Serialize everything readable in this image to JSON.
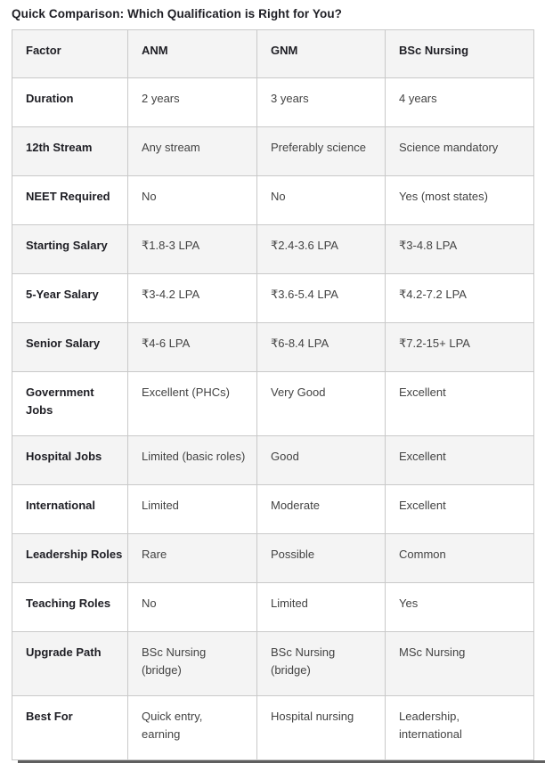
{
  "title": "Quick Comparison: Which Qualification is Right for You?",
  "colors": {
    "bg": "#ffffff",
    "stripe": "#f4f4f4",
    "border": "#c9c9c9",
    "heading_text": "#1e1e24",
    "cell_text": "#434343",
    "edge_bar": "#5f5f5f"
  },
  "comparison_table": {
    "columns": [
      "Factor",
      "ANM",
      "GNM",
      "BSc Nursing"
    ],
    "rows": [
      {
        "factor": "Duration",
        "anm": "2 years",
        "gnm": "3 years",
        "bsc_nursing": "4 years"
      },
      {
        "factor": "12th Stream",
        "anm": "Any stream",
        "gnm": "Preferably science",
        "bsc_nursing": "Science mandatory"
      },
      {
        "factor": "NEET Required",
        "anm": "No",
        "gnm": "No",
        "bsc_nursing": "Yes (most states)"
      },
      {
        "factor": "Starting Salary",
        "anm": "₹1.8-3 LPA",
        "gnm": "₹2.4-3.6 LPA",
        "bsc_nursing": "₹3-4.8 LPA"
      },
      {
        "factor": "5-Year Salary",
        "anm": "₹3-4.2 LPA",
        "gnm": "₹3.6-5.4 LPA",
        "bsc_nursing": "₹4.2-7.2 LPA"
      },
      {
        "factor": "Senior Salary",
        "anm": "₹4-6 LPA",
        "gnm": "₹6-8.4 LPA",
        "bsc_nursing": "₹7.2-15+ LPA"
      },
      {
        "factor": "Government\nJobs",
        "anm": "Excellent (PHCs)",
        "gnm": "Very Good",
        "bsc_nursing": "Excellent"
      },
      {
        "factor": "Hospital Jobs",
        "anm": "Limited (basic roles)",
        "gnm": "Good",
        "bsc_nursing": "Excellent"
      },
      {
        "factor": "International",
        "anm": "Limited",
        "gnm": "Moderate",
        "bsc_nursing": "Excellent"
      },
      {
        "factor": "Leadership Roles",
        "anm": "Rare",
        "gnm": "Possible",
        "bsc_nursing": "Common"
      },
      {
        "factor": "Teaching Roles",
        "anm": "No",
        "gnm": "Limited",
        "bsc_nursing": "Yes"
      },
      {
        "factor": "Upgrade Path",
        "anm": "BSc Nursing\n(bridge)",
        "gnm": "BSc Nursing\n(bridge)",
        "bsc_nursing": "MSc Nursing"
      },
      {
        "factor": "Best For",
        "anm": "Quick entry,\nearning",
        "gnm": "Hospital nursing",
        "bsc_nursing": "Leadership,\ninternational"
      }
    ]
  }
}
